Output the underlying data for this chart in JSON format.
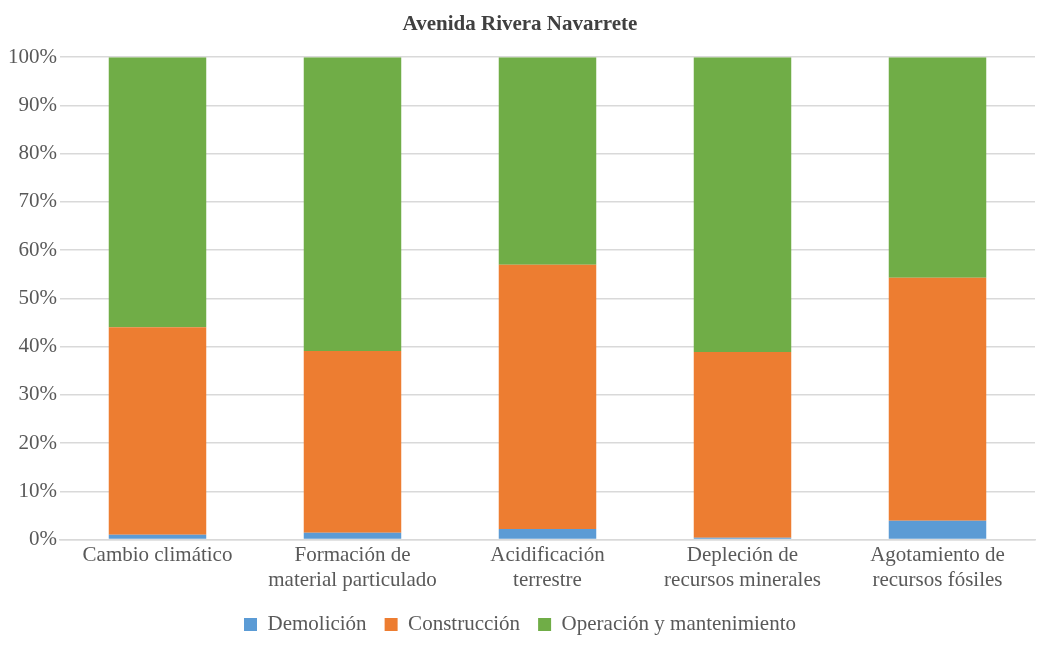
{
  "chart_data": {
    "type": "bar",
    "title": "Avenida Rivera Navarrete",
    "categories": [
      "Cambio climático",
      "Formación de material particulado",
      "Acidificación terrestre",
      "Depleción de recursos minerales",
      "Agotamiento de recursos fósiles"
    ],
    "series": [
      {
        "name": "Demolición",
        "color": "#5b9bd5",
        "values": [
          1.0,
          1.4,
          2.2,
          0.4,
          3.9
        ]
      },
      {
        "name": "Construcción",
        "color": "#ed7d31",
        "values": [
          43.0,
          37.7,
          54.8,
          38.5,
          50.4
        ]
      },
      {
        "name": "Operación y mantenimiento",
        "color": "#70ad47",
        "values": [
          56.0,
          60.9,
          43.0,
          61.1,
          45.7
        ]
      }
    ],
    "stacked": true,
    "ylim": [
      0,
      100
    ],
    "yticks": [
      {
        "value": 0,
        "label": "0%"
      },
      {
        "value": 10,
        "label": "10%"
      },
      {
        "value": 20,
        "label": "20%"
      },
      {
        "value": 30,
        "label": "30%"
      },
      {
        "value": 40,
        "label": "40%"
      },
      {
        "value": 50,
        "label": "50%"
      },
      {
        "value": 60,
        "label": "60%"
      },
      {
        "value": 70,
        "label": "70%"
      },
      {
        "value": 80,
        "label": "80%"
      },
      {
        "value": 90,
        "label": "90%"
      },
      {
        "value": 100,
        "label": "100%"
      }
    ],
    "grid": "y",
    "legend": "bottom"
  }
}
